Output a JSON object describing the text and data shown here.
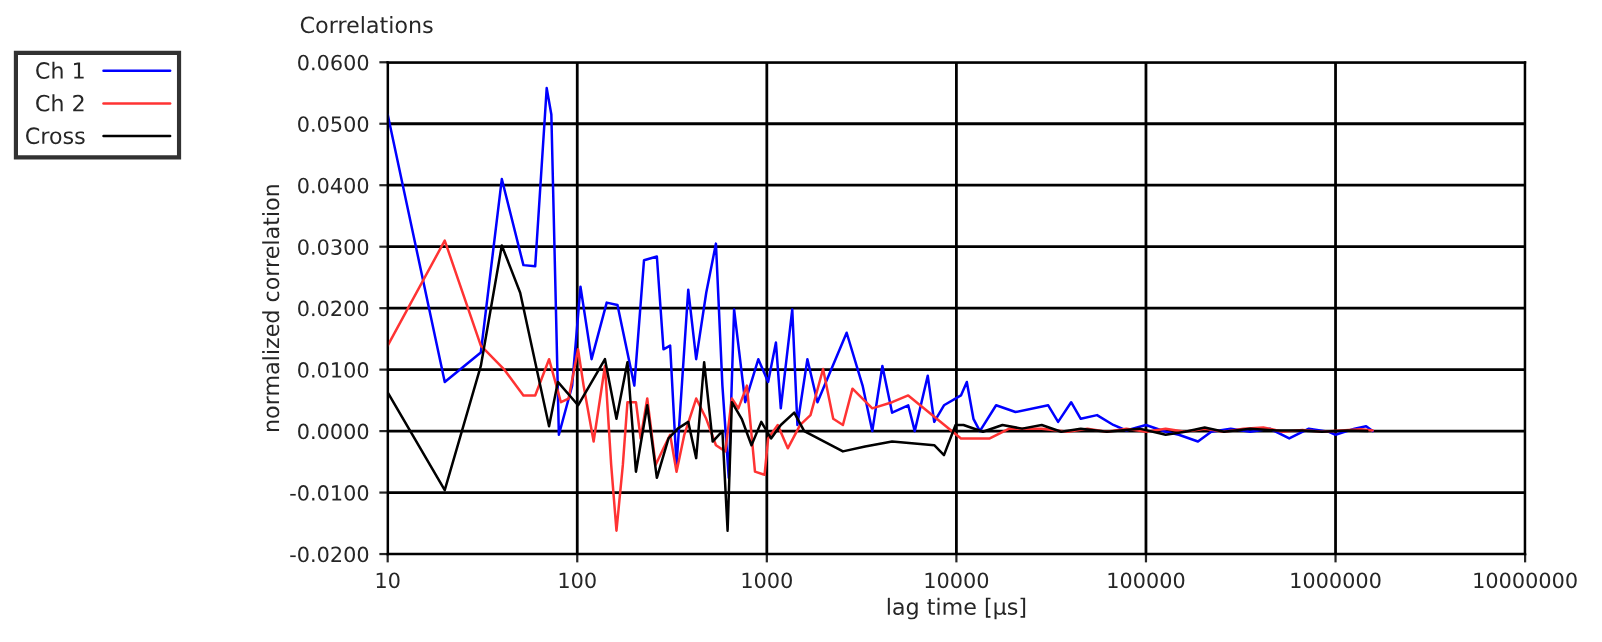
{
  "chart_data": {
    "type": "line",
    "title": "Correlations",
    "xlabel": "lag time [µs]",
    "ylabel": "normalized correlation",
    "log": "x",
    "grid": true,
    "legend": "top left",
    "marker": "none",
    "line_style": "solid",
    "xlim": [
      10,
      10000000
    ],
    "xticks": [
      10,
      100,
      1000,
      10000,
      100000,
      1000000,
      10000000
    ],
    "ylim": [
      -0.02,
      0.06
    ],
    "yticks": [
      {
        "value": -0.02,
        "label": "-0.0200"
      },
      {
        "value": -0.01,
        "label": "-0.0100"
      },
      {
        "value": 0,
        "label": "0.0000"
      },
      {
        "value": 0.01,
        "label": "0.0100"
      },
      {
        "value": 0.02,
        "label": "0.0200"
      },
      {
        "value": 0.03,
        "label": "0.0300"
      },
      {
        "value": 0.04,
        "label": "0.0400"
      },
      {
        "value": 0.05,
        "label": "0.0500"
      },
      {
        "value": 0.06,
        "label": "0.0600"
      }
    ],
    "series": [
      {
        "name": "Ch 1",
        "color": "#0000ff",
        "x": [
          10,
          20,
          31,
          40,
          52,
          60,
          69,
          73,
          80,
          94,
          104,
          119,
          143,
          163,
          200,
          225,
          263,
          285,
          309,
          334,
          385,
          424,
          479,
          539,
          583,
          630,
          672,
          769,
          902,
          1016,
          1117,
          1185,
          1362,
          1450,
          1637,
          1850,
          2637,
          3200,
          3600,
          4070,
          4580,
          5570,
          6030,
          7060,
          7640,
          8600,
          10570,
          11350,
          12300,
          13300,
          16200,
          20500,
          30500,
          34400,
          40300,
          45300,
          55200,
          67300,
          78800,
          100000,
          127000,
          149000,
          188000,
          221000,
          280000,
          355000,
          450000,
          570000,
          723000,
          916000,
          1000000,
          1260000,
          1450000,
          1570000
        ],
        "values": [
          0.0515,
          0.008,
          0.0128,
          0.041,
          0.027,
          0.0268,
          0.0558,
          0.0515,
          -0.0006,
          0.0074,
          0.0235,
          0.0117,
          0.0209,
          0.0205,
          0.0074,
          0.0278,
          0.0284,
          0.0133,
          0.0139,
          -0.0055,
          0.023,
          0.0117,
          0.0225,
          0.0305,
          0.0074,
          -0.0076,
          0.0198,
          0.0047,
          0.0117,
          0.008,
          0.0144,
          0.0037,
          0.0198,
          0.001,
          0.0117,
          0.0047,
          0.016,
          0.0074,
          0,
          0.0106,
          0.003,
          0.0042,
          0,
          0.009,
          0.0015,
          0.0042,
          0.0058,
          0.008,
          0.002,
          0,
          0.0042,
          0.0031,
          0.0042,
          0.0015,
          0.0047,
          0.002,
          0.0026,
          0.001,
          0.0001,
          0.001,
          -0.0001,
          -0.0006,
          -0.0017,
          -0.0001,
          0.0004,
          -0.0001,
          0.0004,
          -0.0012,
          0.0004,
          -0.0001,
          -0.0006,
          0.0004,
          0.0008,
          0
        ]
      },
      {
        "name": "Ch 2",
        "color": "#ff3333",
        "x": [
          10,
          20,
          31,
          41,
          52,
          60,
          71,
          82,
          90,
          101,
          108,
          122,
          140,
          151,
          161,
          174,
          184,
          204,
          216,
          234,
          259,
          285,
          309,
          334,
          367,
          424,
          479,
          539,
          604,
          654,
          708,
          785,
          866,
          973,
          1016,
          1142,
          1290,
          1500,
          1700,
          1980,
          2240,
          2520,
          2830,
          3600,
          4580,
          5570,
          10570,
          15000,
          19000,
          28200,
          38700,
          49100,
          62200,
          78800,
          100000,
          127000,
          161000,
          204000,
          258000,
          327000,
          416000,
          527000,
          668000,
          847000,
          1070000,
          1360000,
          1570000
        ],
        "values": [
          0.0139,
          0.031,
          0.0139,
          0.0101,
          0.0058,
          0.0058,
          0.0117,
          0.0047,
          0.0053,
          0.0133,
          0.0074,
          -0.0017,
          0.0106,
          -0.0055,
          -0.0162,
          -0.0055,
          0.0047,
          0.0047,
          -0.0012,
          0.0053,
          -0.0055,
          -0.0028,
          -0.0006,
          -0.0066,
          -0.0006,
          0.0053,
          0.002,
          -0.0023,
          -0.0033,
          0.0053,
          0.0037,
          0.0074,
          -0.0066,
          -0.0071,
          -0.0012,
          0.001,
          -0.0028,
          0.001,
          0.0026,
          0.0101,
          0.002,
          0.001,
          0.0069,
          0.0037,
          0.0047,
          0.0058,
          -0.0012,
          -0.0012,
          0.0004,
          0.0004,
          -0.0001,
          0.0004,
          -0.0001,
          0.0004,
          -0.0001,
          0.0004,
          -0.0001,
          0.0004,
          -0.0001,
          0.0004,
          0.0006,
          -0.0001,
          0.0002,
          -0.0001,
          0.0001,
          0.0003,
          0.0001
        ]
      },
      {
        "name": "Cross",
        "color": "#000000",
        "x": [
          10,
          20,
          31,
          40,
          50,
          71,
          79,
          101,
          140,
          161,
          184,
          204,
          234,
          263,
          303,
          339,
          385,
          424,
          467,
          518,
          583,
          621,
          654,
          737,
          830,
          935,
          1053,
          1185,
          1395,
          1575,
          2520,
          3300,
          4580,
          7640,
          8600,
          9900,
          10900,
          13800,
          17500,
          22200,
          28200,
          35700,
          45300,
          62200,
          92400,
          127000,
          161000,
          204000,
          258000,
          355000,
          487000,
          668000,
          847000,
          1160000,
          1470000
        ],
        "values": [
          0.0063,
          -0.0096,
          0.0106,
          0.0302,
          0.0225,
          0.0008,
          0.008,
          0.0042,
          0.0117,
          0.002,
          0.0112,
          -0.0066,
          0.0042,
          -0.0076,
          -0.0012,
          0.0004,
          0.0015,
          -0.0044,
          0.0112,
          -0.0017,
          0,
          -0.0162,
          0.0047,
          0.002,
          -0.0023,
          0.0015,
          -0.0012,
          0.001,
          0.003,
          0,
          -0.0033,
          -0.0025,
          -0.0017,
          -0.0023,
          -0.0039,
          0.001,
          0.001,
          -0.0001,
          0.001,
          0.0004,
          0.001,
          -0.0001,
          0.0004,
          -0.0001,
          0.0004,
          -0.0006,
          -0.0001,
          0.0006,
          -0.0001,
          0.0004,
          0.0001,
          0.0001,
          -0.0001,
          0.0001,
          0
        ]
      }
    ]
  }
}
